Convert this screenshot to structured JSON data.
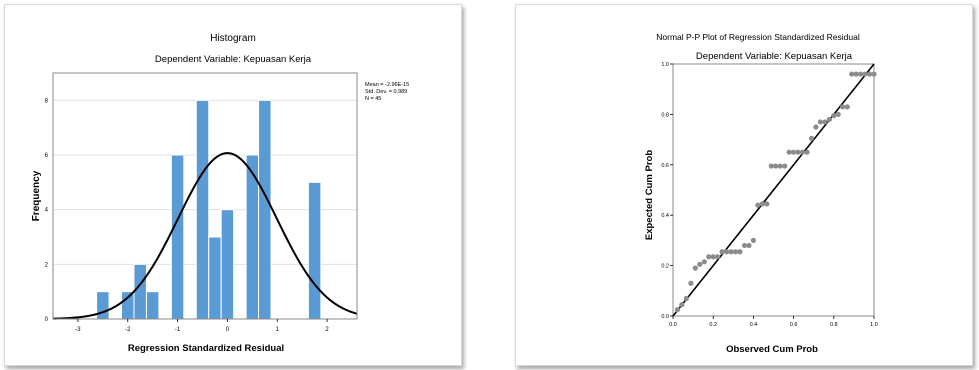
{
  "chart_data": [
    {
      "type": "bar",
      "title": "Histogram",
      "subtitle": "Dependent Variable: Kepuasan Kerja",
      "xlabel": "Regression Standardized Residual",
      "ylabel": "Frequency",
      "xlim": [
        -3.5,
        2.6
      ],
      "ylim": [
        0,
        9
      ],
      "xticks": [
        -3,
        -2,
        -1,
        0,
        1,
        2
      ],
      "yticks": [
        0,
        2,
        4,
        6,
        8
      ],
      "bin_width": 0.25,
      "bins": [
        {
          "start": -2.625,
          "value": 1
        },
        {
          "start": -2.125,
          "value": 1
        },
        {
          "start": -1.875,
          "value": 2
        },
        {
          "start": -1.625,
          "value": 1
        },
        {
          "start": -1.125,
          "value": 6
        },
        {
          "start": -0.625,
          "value": 8
        },
        {
          "start": -0.375,
          "value": 3
        },
        {
          "start": -0.125,
          "value": 4
        },
        {
          "start": 0.375,
          "value": 6
        },
        {
          "start": 0.625,
          "value": 8
        },
        {
          "start": 1.625,
          "value": 5
        }
      ],
      "normal_curve": {
        "mean": 0,
        "sd": 0.989,
        "peak": 6.07
      },
      "stats_box": [
        "Mean = -2.96E-15",
        "Std. Dev. = 0.989",
        "N = 45"
      ],
      "colors": {
        "bar": "#5b9bd5",
        "bar_edge": "#ffffff",
        "curve": "#000000",
        "grid": "#e0e0e0"
      },
      "grid": "horizontal"
    },
    {
      "type": "scatter",
      "title": "Normal P-P Plot of Regression Standardized Residual",
      "subtitle": "Dependent Variable: Kepuasan Kerja",
      "xlabel": "Observed Cum Prob",
      "ylabel": "Expected Cum Prob",
      "xlim": [
        0,
        1
      ],
      "ylim": [
        0,
        1
      ],
      "xticks": [
        "0.0",
        "0.2",
        "0.4",
        "0.6",
        "0.8",
        "1.0"
      ],
      "yticks": [
        "0.0",
        "0.2",
        "0.4",
        "0.6",
        "0.8",
        "1.0"
      ],
      "points": [
        [
          0.022,
          0.025
        ],
        [
          0.044,
          0.045
        ],
        [
          0.067,
          0.07
        ],
        [
          0.089,
          0.13
        ],
        [
          0.111,
          0.19
        ],
        [
          0.133,
          0.205
        ],
        [
          0.156,
          0.215
        ],
        [
          0.178,
          0.235
        ],
        [
          0.2,
          0.235
        ],
        [
          0.222,
          0.235
        ],
        [
          0.244,
          0.255
        ],
        [
          0.267,
          0.255
        ],
        [
          0.289,
          0.255
        ],
        [
          0.311,
          0.255
        ],
        [
          0.333,
          0.255
        ],
        [
          0.356,
          0.28
        ],
        [
          0.378,
          0.28
        ],
        [
          0.4,
          0.3
        ],
        [
          0.422,
          0.44
        ],
        [
          0.444,
          0.445
        ],
        [
          0.467,
          0.445
        ],
        [
          0.489,
          0.595
        ],
        [
          0.511,
          0.595
        ],
        [
          0.533,
          0.595
        ],
        [
          0.556,
          0.595
        ],
        [
          0.578,
          0.65
        ],
        [
          0.6,
          0.65
        ],
        [
          0.622,
          0.65
        ],
        [
          0.644,
          0.65
        ],
        [
          0.667,
          0.65
        ],
        [
          0.689,
          0.705
        ],
        [
          0.711,
          0.75
        ],
        [
          0.733,
          0.77
        ],
        [
          0.756,
          0.77
        ],
        [
          0.778,
          0.78
        ],
        [
          0.8,
          0.795
        ],
        [
          0.822,
          0.8
        ],
        [
          0.844,
          0.83
        ],
        [
          0.867,
          0.83
        ],
        [
          0.889,
          0.96
        ],
        [
          0.911,
          0.96
        ],
        [
          0.933,
          0.96
        ],
        [
          0.956,
          0.96
        ],
        [
          0.978,
          0.96
        ],
        [
          1.0,
          0.96
        ]
      ],
      "reference_line": [
        [
          0,
          0
        ],
        [
          1,
          1
        ]
      ],
      "colors": {
        "point": "#8c8c8c",
        "line": "#000000"
      },
      "grid": false
    }
  ]
}
